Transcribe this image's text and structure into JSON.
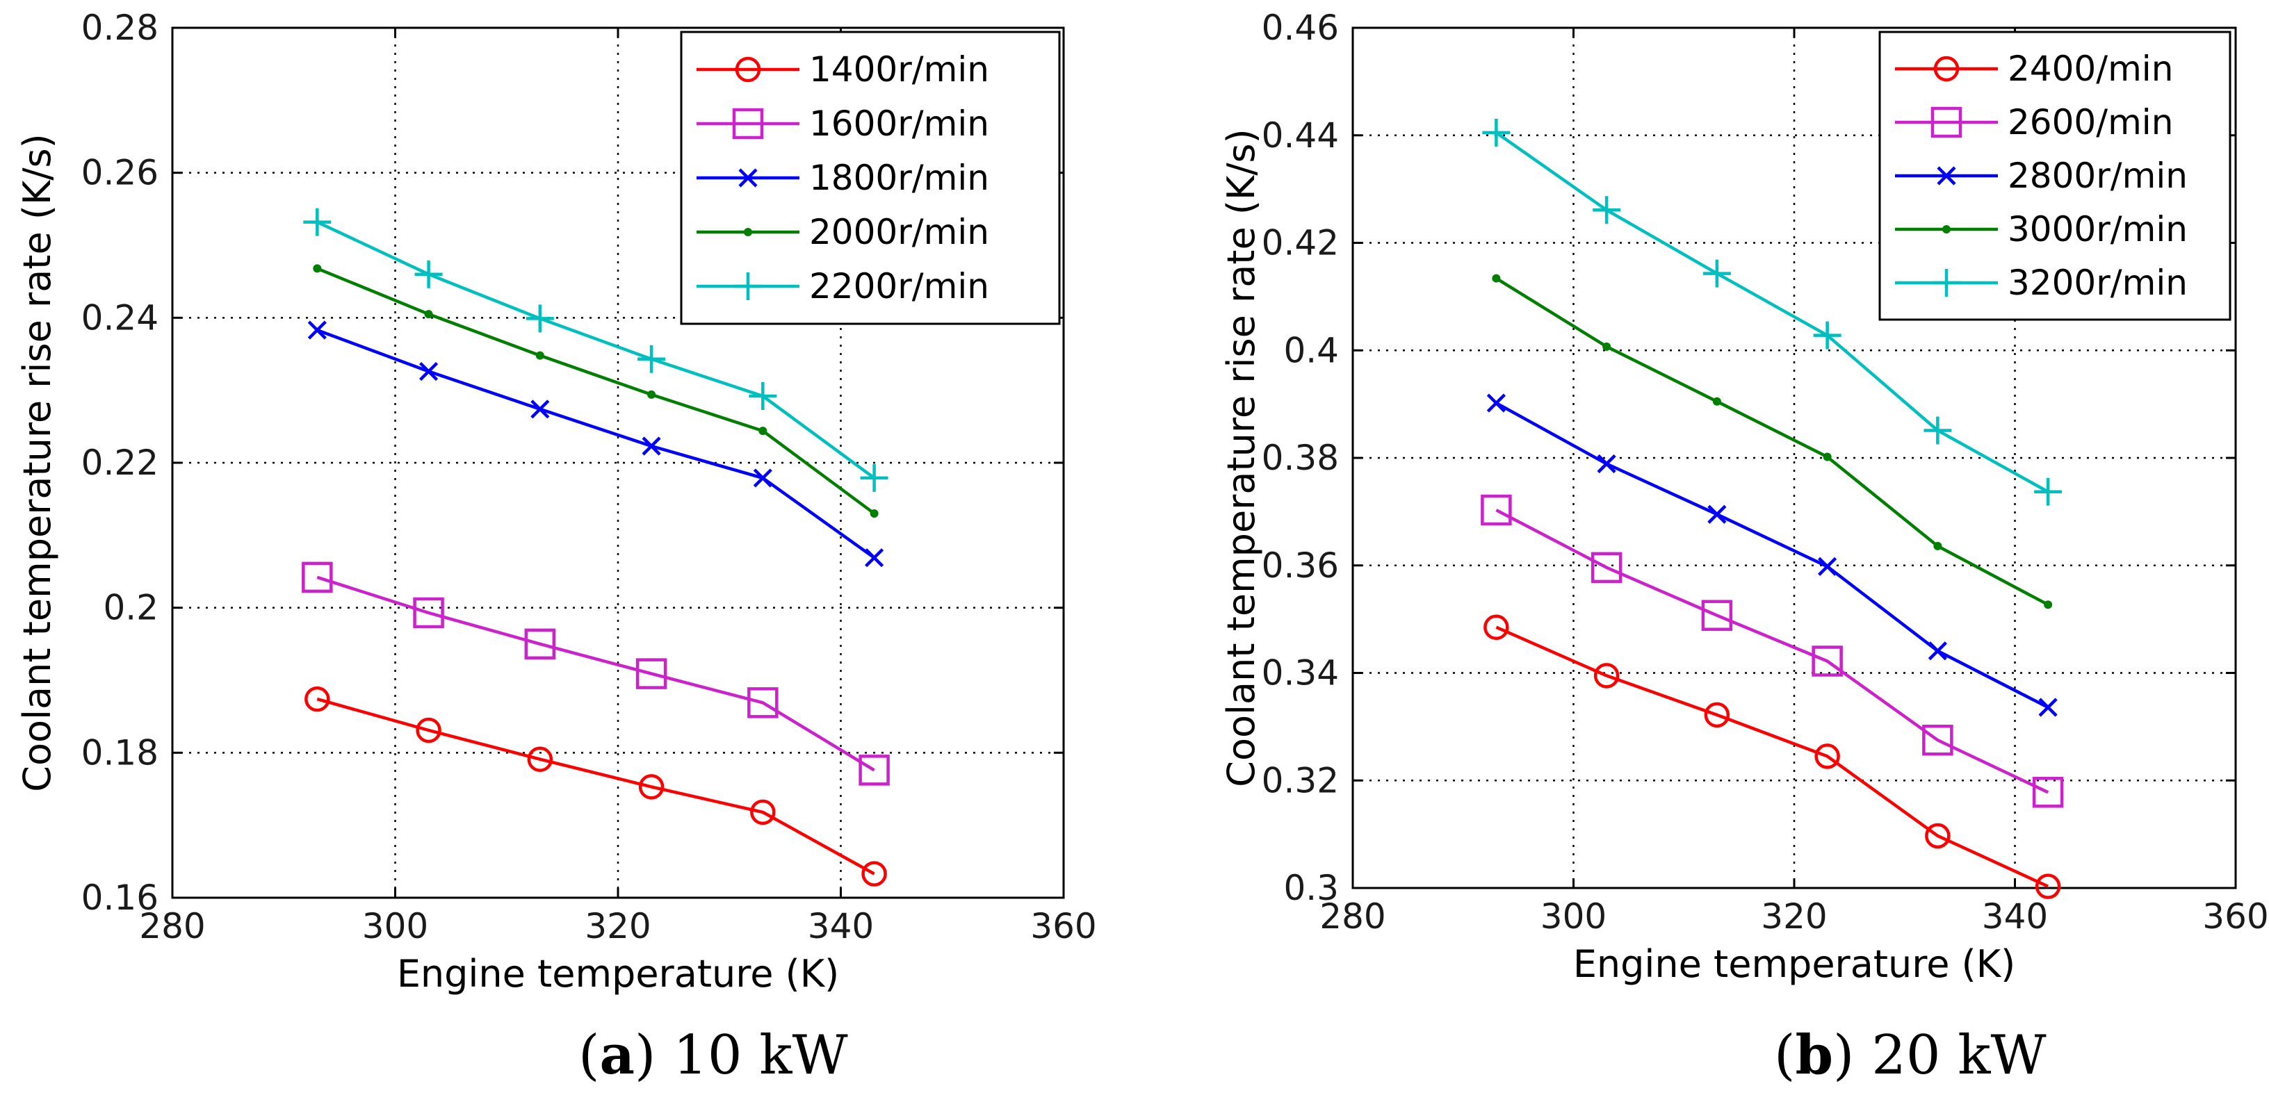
{
  "chart_data": [
    {
      "type": "line",
      "caption_letter": "a",
      "caption_text": " 10 kW",
      "xlabel": "Engine temperature (K)",
      "ylabel": "Coolant temperature rise rate (K/s)",
      "xlim": [
        280,
        360
      ],
      "ylim": [
        0.16,
        0.28
      ],
      "xticks": [
        280,
        300,
        320,
        340,
        360
      ],
      "xtick_labels": [
        "280",
        "300",
        "320",
        "340",
        "360"
      ],
      "yticks": [
        0.16,
        0.18,
        0.2,
        0.22,
        0.24,
        0.26,
        0.28
      ],
      "ytick_labels": [
        "0.16",
        "0.18",
        "0.2",
        "0.22",
        "0.24",
        "0.26",
        "0.28"
      ],
      "grid": true,
      "legend_position": "top-right",
      "x": [
        293,
        303,
        313,
        323,
        333,
        343
      ],
      "series": [
        {
          "name": "1400r/min",
          "color": "#ff0000",
          "marker": "circle",
          "values": [
            0.1874,
            0.1831,
            0.1791,
            0.1753,
            0.1718,
            0.1633
          ]
        },
        {
          "name": "1600r/min",
          "color": "#cc22cc",
          "marker": "square",
          "values": [
            0.2042,
            0.1993,
            0.195,
            0.1909,
            0.1869,
            0.1776
          ]
        },
        {
          "name": "1800r/min",
          "color": "#0000ff",
          "marker": "x",
          "values": [
            0.2383,
            0.2326,
            0.2274,
            0.2223,
            0.2179,
            0.2069
          ]
        },
        {
          "name": "2000r/min",
          "color": "#007f00",
          "marker": "dot",
          "values": [
            0.2468,
            0.2405,
            0.2348,
            0.2294,
            0.2244,
            0.213
          ]
        },
        {
          "name": "2200r/min",
          "color": "#00bfbf",
          "marker": "plus",
          "values": [
            0.2532,
            0.246,
            0.2399,
            0.2343,
            0.2292,
            0.2179
          ]
        }
      ]
    },
    {
      "type": "line",
      "caption_letter": "b",
      "caption_text": " 20 kW",
      "xlabel": "Engine temperature (K)",
      "ylabel": "Coolant temperature rise rate (K/s)",
      "xlim": [
        280,
        360
      ],
      "ylim": [
        0.3,
        0.46
      ],
      "xticks": [
        280,
        300,
        320,
        340,
        360
      ],
      "xtick_labels": [
        "280",
        "300",
        "320",
        "340",
        "360"
      ],
      "yticks": [
        0.3,
        0.32,
        0.34,
        0.36,
        0.38,
        0.4,
        0.42,
        0.44,
        0.46
      ],
      "ytick_labels": [
        "0.3",
        "0.32",
        "0.34",
        "0.36",
        "0.38",
        "0.4",
        "0.42",
        "0.44",
        "0.46"
      ],
      "grid": true,
      "legend_position": "top-right",
      "x": [
        293,
        303,
        313,
        323,
        333,
        343
      ],
      "series": [
        {
          "name": "2400/min",
          "color": "#ff0000",
          "marker": "circle",
          "values": [
            0.3485,
            0.3395,
            0.3322,
            0.3245,
            0.3097,
            0.3003
          ]
        },
        {
          "name": "2600/min",
          "color": "#cc22cc",
          "marker": "square",
          "values": [
            0.3703,
            0.3596,
            0.3507,
            0.3422,
            0.3275,
            0.3178
          ]
        },
        {
          "name": "2800r/min",
          "color": "#0000ff",
          "marker": "x",
          "values": [
            0.3902,
            0.3789,
            0.3695,
            0.3598,
            0.3441,
            0.3336
          ]
        },
        {
          "name": "3000r/min",
          "color": "#007f00",
          "marker": "dot",
          "values": [
            0.4134,
            0.4007,
            0.3905,
            0.3802,
            0.3636,
            0.3527
          ]
        },
        {
          "name": "3200r/min",
          "color": "#00bfbf",
          "marker": "plus",
          "values": [
            0.4405,
            0.4261,
            0.4143,
            0.4028,
            0.3851,
            0.3737
          ]
        }
      ]
    }
  ]
}
